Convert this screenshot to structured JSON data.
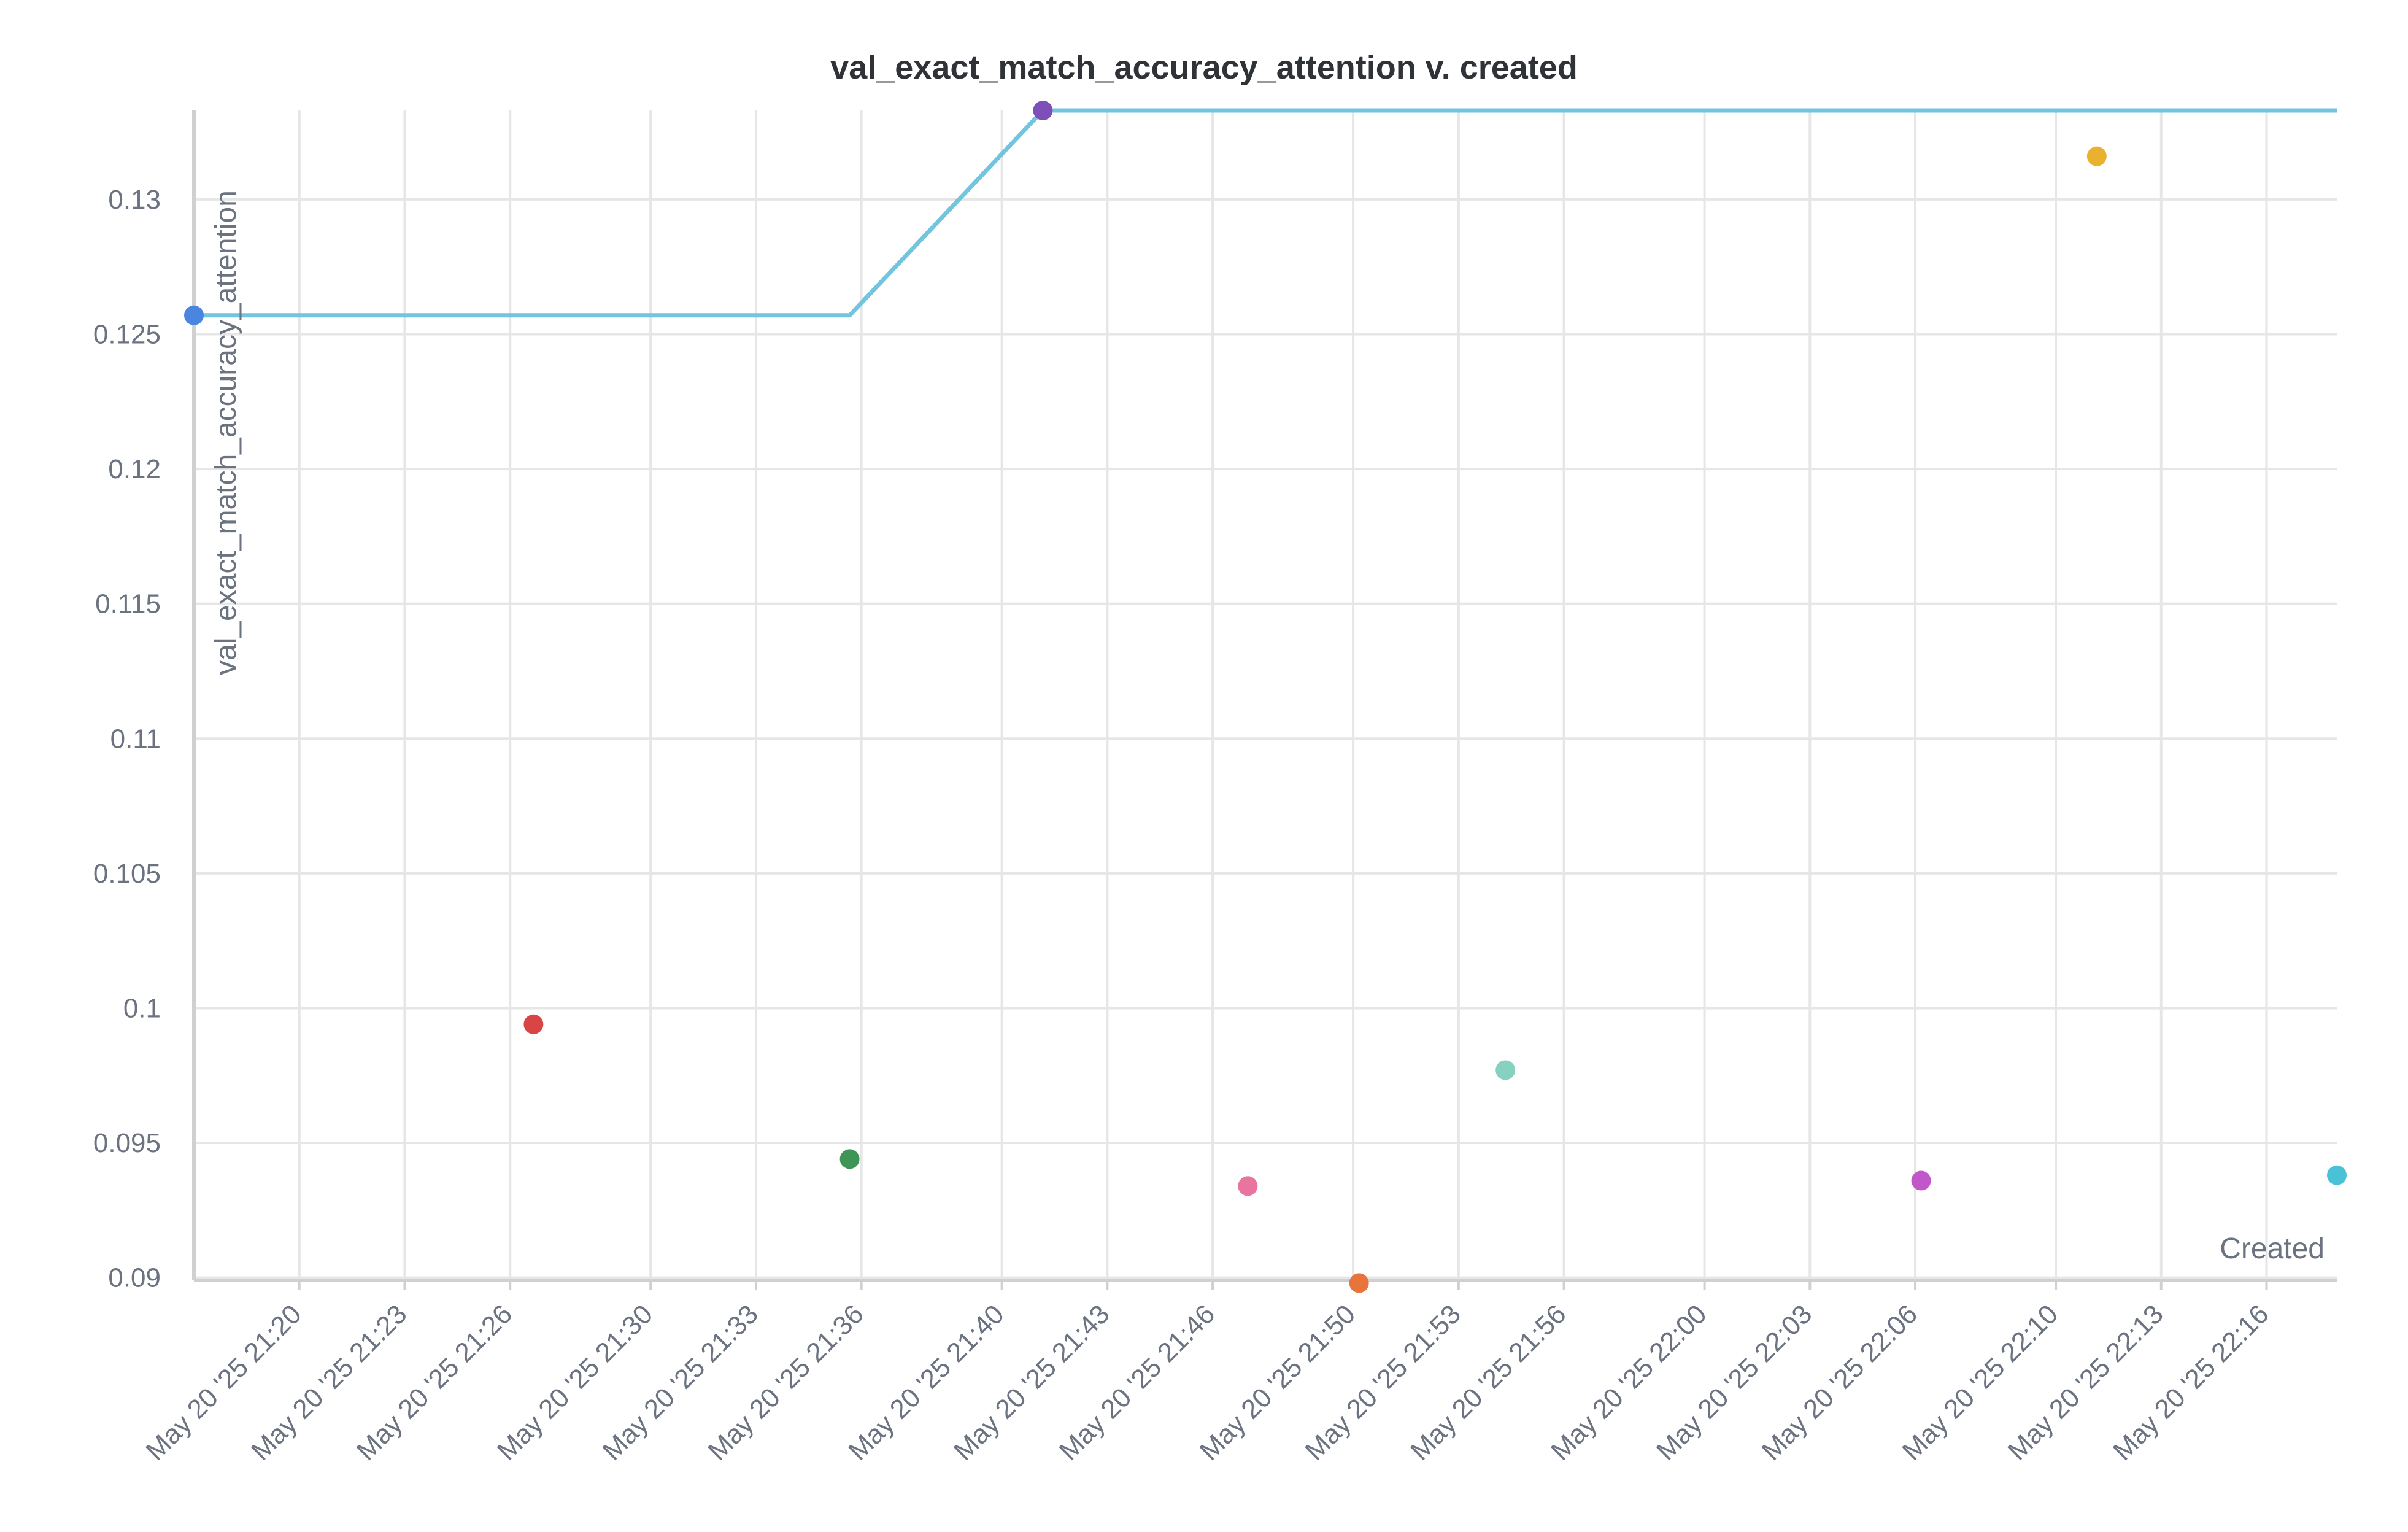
{
  "chart_data": {
    "type": "scatter",
    "title": "val_exact_match_accuracy_attention v. created",
    "xlabel": "Created",
    "ylabel": "val_exact_match_accuracy_attention",
    "xlim": [
      "2025-05-20 21:17:00",
      "2025-05-20 22:18:00"
    ],
    "ylim": [
      0.0899,
      0.1333
    ],
    "grid": true,
    "x_ticks": [
      "May 20 '25 21:20",
      "May 20 '25 21:23",
      "May 20 '25 21:26",
      "May 20 '25 21:30",
      "May 20 '25 21:33",
      "May 20 '25 21:36",
      "May 20 '25 21:40",
      "May 20 '25 21:43",
      "May 20 '25 21:46",
      "May 20 '25 21:50",
      "May 20 '25 21:53",
      "May 20 '25 21:56",
      "May 20 '25 22:00",
      "May 20 '25 22:03",
      "May 20 '25 22:06",
      "May 20 '25 22:10",
      "May 20 '25 22:13",
      "May 20 '25 22:16"
    ],
    "y_ticks": [
      "0.09",
      "0.095",
      "0.1",
      "0.105",
      "0.11",
      "0.115",
      "0.12",
      "0.125",
      "0.13"
    ],
    "points": [
      {
        "x": "2025-05-20 21:17:00",
        "y": 0.1257,
        "color": "#4a86e0"
      },
      {
        "x": "2025-05-20 21:26:40",
        "y": 0.0994,
        "color": "#d94545"
      },
      {
        "x": "2025-05-20 21:35:40",
        "y": 0.0944,
        "color": "#3f9556"
      },
      {
        "x": "2025-05-20 21:41:10",
        "y": 0.1333,
        "color": "#7e4fb8"
      },
      {
        "x": "2025-05-20 21:47:00",
        "y": 0.0934,
        "color": "#e874a0"
      },
      {
        "x": "2025-05-20 21:50:10",
        "y": 0.0898,
        "color": "#e8743b"
      },
      {
        "x": "2025-05-20 21:54:20",
        "y": 0.0977,
        "color": "#86d1c0"
      },
      {
        "x": "2025-05-20 22:06:10",
        "y": 0.0936,
        "color": "#c257c9"
      },
      {
        "x": "2025-05-20 22:11:10",
        "y": 0.1316,
        "color": "#eab12f"
      },
      {
        "x": "2025-05-20 22:18:00",
        "y": 0.0938,
        "color": "#49c2d8"
      }
    ],
    "best_so_far_line": {
      "color": "#73c4de",
      "points": [
        {
          "x": "2025-05-20 21:17:00",
          "y": 0.1257
        },
        {
          "x": "2025-05-20 21:35:40",
          "y": 0.1257
        },
        {
          "x": "2025-05-20 21:41:10",
          "y": 0.1333
        },
        {
          "x": "2025-05-20 22:18:00",
          "y": 0.1333
        }
      ]
    }
  }
}
